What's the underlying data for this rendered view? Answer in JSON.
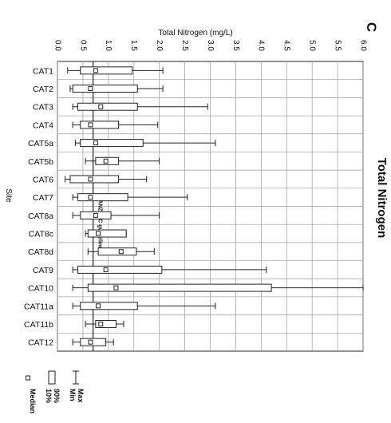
{
  "panel_letter": "C",
  "side_title": "Total Nitrogen",
  "chart_data": {
    "type": "box",
    "title": "Total Nitrogen",
    "xlabel": "Total Nitrogen (mg/L)",
    "ylabel": "Site",
    "xlim": [
      0,
      6
    ],
    "xticks": [
      "0.0",
      "0.5",
      "1.0",
      "1.5",
      "2.0",
      "2.5",
      "3.0",
      "3.5",
      "4.0",
      "4.5",
      "5.0",
      "5.5",
      "6.0"
    ],
    "grid": true,
    "guideline": {
      "label": "ANZECC guideline",
      "value": 0.7
    },
    "categories": [
      "CAT1",
      "CAT2",
      "CAT3",
      "CAT4",
      "CAT5a",
      "CAT5b",
      "CAT6",
      "CAT7",
      "CAT8a",
      "CAT8c",
      "CAT8d",
      "CAT9",
      "CAT10",
      "CAT11a",
      "CAT11b",
      "CAT12"
    ],
    "series": [
      {
        "site": "CAT1",
        "min": 0.2,
        "p10": 0.45,
        "median": 0.75,
        "p90": 1.47,
        "max": 2.07
      },
      {
        "site": "CAT2",
        "min": 0.25,
        "p10": 0.3,
        "median": 0.65,
        "p90": 1.57,
        "max": 2.07
      },
      {
        "site": "CAT3",
        "min": 0.3,
        "p10": 0.4,
        "median": 0.85,
        "p90": 1.57,
        "max": 2.95
      },
      {
        "site": "CAT4",
        "min": 0.3,
        "p10": 0.45,
        "median": 0.65,
        "p90": 1.2,
        "max": 1.97
      },
      {
        "site": "CAT5a",
        "min": 0.35,
        "p10": 0.45,
        "median": 0.75,
        "p90": 1.68,
        "max": 3.1
      },
      {
        "site": "CAT5b",
        "min": 0.55,
        "p10": 0.75,
        "median": 0.95,
        "p90": 1.2,
        "max": 2.0
      },
      {
        "site": "CAT6",
        "min": 0.15,
        "p10": 0.25,
        "median": 0.65,
        "p90": 1.2,
        "max": 1.75
      },
      {
        "site": "CAT7",
        "min": 0.3,
        "p10": 0.4,
        "median": 0.65,
        "p90": 1.38,
        "max": 2.55
      },
      {
        "site": "CAT8a",
        "min": 0.3,
        "p10": 0.45,
        "median": 0.75,
        "p90": 1.05,
        "max": 2.0
      },
      {
        "site": "CAT8c",
        "min": 0.55,
        "p10": 0.6,
        "median": 0.8,
        "p90": 1.35,
        "max": 1.35
      },
      {
        "site": "CAT8d",
        "min": 0.6,
        "p10": 0.8,
        "median": 1.25,
        "p90": 1.55,
        "max": 1.9
      },
      {
        "site": "CAT9",
        "min": 0.3,
        "p10": 0.4,
        "median": 0.95,
        "p90": 2.05,
        "max": 4.1
      },
      {
        "site": "CAT10",
        "min": 0.3,
        "p10": 0.6,
        "median": 1.15,
        "p90": 4.2,
        "max": 6.0
      },
      {
        "site": "CAT11a",
        "min": 0.3,
        "p10": 0.45,
        "median": 0.8,
        "p90": 1.57,
        "max": 3.1
      },
      {
        "site": "CAT11b",
        "min": 0.55,
        "p10": 0.75,
        "median": 0.85,
        "p90": 1.15,
        "max": 1.3
      },
      {
        "site": "CAT12",
        "min": 0.3,
        "p10": 0.45,
        "median": 0.65,
        "p90": 0.95,
        "max": 1.1
      }
    ],
    "legend": {
      "placement": "bottom-left",
      "entries": [
        {
          "symbol": "whisker",
          "label_a": "Max",
          "label_b": "Min"
        },
        {
          "symbol": "box",
          "label_a": "90%",
          "label_b": "10%"
        },
        {
          "symbol": "median",
          "label_a": "Median",
          "label_b": ""
        }
      ]
    }
  }
}
